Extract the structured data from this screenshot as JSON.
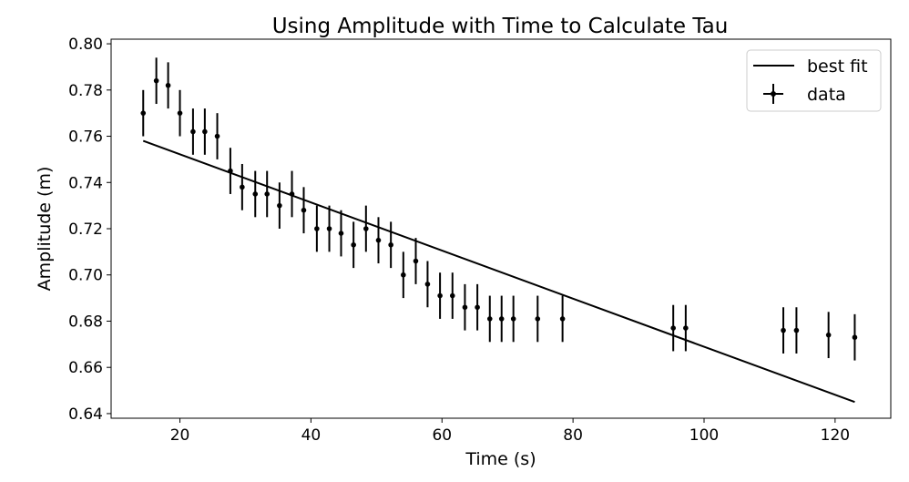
{
  "chart_data": {
    "type": "scatter",
    "title": "Using Amplitude with Time to Calculate Tau",
    "xlabel": "Time (s)",
    "ylabel": "Amplitude (m)",
    "xlim": [
      9.5,
      128.5
    ],
    "ylim": [
      0.638,
      0.802
    ],
    "xticks": [
      20,
      40,
      60,
      80,
      100,
      120
    ],
    "yticks": [
      0.64,
      0.66,
      0.68,
      0.7,
      0.72,
      0.74,
      0.76,
      0.78,
      0.8
    ],
    "ytick_labels": [
      "0.64",
      "0.66",
      "0.68",
      "0.70",
      "0.72",
      "0.74",
      "0.76",
      "0.78",
      "0.80"
    ],
    "grid": false,
    "legend": {
      "placement": "top-right",
      "entries": [
        {
          "label": "best fit",
          "kind": "line"
        },
        {
          "label": "data",
          "kind": "errorbar"
        }
      ]
    },
    "series": [
      {
        "name": "data",
        "kind": "errorbar",
        "color": "#000000",
        "x": [
          14.4,
          16.4,
          18.2,
          20.0,
          22.0,
          23.8,
          25.7,
          27.7,
          29.5,
          31.5,
          33.3,
          35.2,
          37.1,
          38.9,
          40.9,
          42.8,
          44.6,
          46.5,
          48.4,
          50.3,
          52.2,
          54.1,
          56.0,
          57.8,
          59.7,
          61.6,
          63.5,
          65.4,
          67.3,
          69.1,
          70.9,
          74.6,
          78.4,
          95.3,
          97.2,
          112.1,
          114.1,
          119.0,
          123.0
        ],
        "y": [
          0.77,
          0.784,
          0.782,
          0.77,
          0.762,
          0.762,
          0.76,
          0.745,
          0.738,
          0.735,
          0.735,
          0.73,
          0.735,
          0.728,
          0.72,
          0.72,
          0.718,
          0.713,
          0.72,
          0.715,
          0.713,
          0.7,
          0.706,
          0.696,
          0.691,
          0.691,
          0.686,
          0.686,
          0.681,
          0.681,
          0.681,
          0.681,
          0.681,
          0.677,
          0.677,
          0.676,
          0.676,
          0.674,
          0.673
        ],
        "yerr": 0.01
      },
      {
        "name": "best fit",
        "kind": "line",
        "color": "#000000",
        "x": [
          14.4,
          123.0
        ],
        "y": [
          0.758,
          0.645
        ]
      }
    ]
  }
}
